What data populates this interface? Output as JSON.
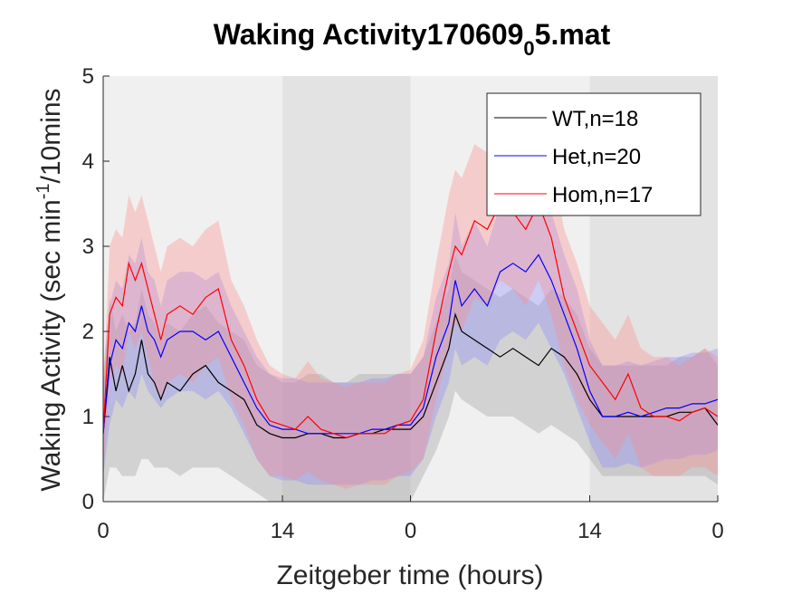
{
  "chart_data": {
    "type": "line",
    "title_main": "Waking Activity170609",
    "title_sub": "0",
    "title_tail": "5.mat",
    "xlabel": "Zeitgeber time (hours)",
    "ylabel_main": "Waking Activity (sec min",
    "ylabel_sup": "-1",
    "ylabel_tail": "/10mins",
    "ylim": [
      0,
      5
    ],
    "y_ticks": [
      0,
      1,
      2,
      3,
      4,
      5
    ],
    "xlim": [
      0,
      48
    ],
    "x_ticks": [
      {
        "hour": 0,
        "label": "0"
      },
      {
        "hour": 14,
        "label": "14"
      },
      {
        "hour": 24,
        "label": "0"
      },
      {
        "hour": 38,
        "label": "14"
      },
      {
        "hour": 48,
        "label": "0"
      }
    ],
    "shading": [
      {
        "start": 0,
        "end": 14,
        "phase": "light"
      },
      {
        "start": 14,
        "end": 24,
        "phase": "dark"
      },
      {
        "start": 24,
        "end": 38,
        "phase": "light"
      },
      {
        "start": 38,
        "end": 48,
        "phase": "dark"
      }
    ],
    "shading_colors": {
      "light": "#f0f0f0",
      "dark": "#e3e3e3"
    },
    "legend_position": "top-right",
    "series": [
      {
        "name": "WT,n=18",
        "color": "#000000",
        "band_color": "#9a9a9a",
        "points": [
          [
            0,
            0.8
          ],
          [
            0.5,
            1.7
          ],
          [
            1,
            1.3
          ],
          [
            1.5,
            1.6
          ],
          [
            2,
            1.3
          ],
          [
            2.5,
            1.5
          ],
          [
            3,
            1.9
          ],
          [
            3.5,
            1.5
          ],
          [
            4,
            1.4
          ],
          [
            4.5,
            1.2
          ],
          [
            5,
            1.4
          ],
          [
            6,
            1.3
          ],
          [
            7,
            1.5
          ],
          [
            8,
            1.6
          ],
          [
            9,
            1.4
          ],
          [
            10,
            1.3
          ],
          [
            11,
            1.2
          ],
          [
            12,
            0.9
          ],
          [
            13,
            0.8
          ],
          [
            14,
            0.75
          ],
          [
            15,
            0.75
          ],
          [
            16,
            0.8
          ],
          [
            17,
            0.8
          ],
          [
            18,
            0.75
          ],
          [
            19,
            0.75
          ],
          [
            20,
            0.8
          ],
          [
            21,
            0.8
          ],
          [
            22,
            0.85
          ],
          [
            23,
            0.85
          ],
          [
            24,
            0.85
          ],
          [
            25,
            1.0
          ],
          [
            26,
            1.4
          ],
          [
            27,
            1.8
          ],
          [
            27.5,
            2.2
          ],
          [
            28,
            2.0
          ],
          [
            29,
            1.9
          ],
          [
            30,
            1.8
          ],
          [
            31,
            1.7
          ],
          [
            32,
            1.8
          ],
          [
            33,
            1.7
          ],
          [
            34,
            1.6
          ],
          [
            35,
            1.8
          ],
          [
            36,
            1.7
          ],
          [
            37,
            1.5
          ],
          [
            38,
            1.2
          ],
          [
            39,
            1.0
          ],
          [
            40,
            1.0
          ],
          [
            41,
            1.0
          ],
          [
            42,
            1.0
          ],
          [
            43,
            1.0
          ],
          [
            44,
            1.0
          ],
          [
            45,
            1.05
          ],
          [
            46,
            1.05
          ],
          [
            47,
            1.1
          ],
          [
            48,
            0.9
          ]
        ],
        "band_lower": [
          0.0,
          0.4,
          0.4,
          0.3,
          0.3,
          0.3,
          0.5,
          0.5,
          0.4,
          0.4,
          0.4,
          0.3,
          0.4,
          0.4,
          0.4,
          0.3,
          0.2,
          0.1,
          0.0,
          0.0,
          0.0,
          0.0,
          0.0,
          0.0,
          0.0,
          0.0,
          0.0,
          0.0,
          0.0,
          0.0,
          0.3,
          0.6,
          1.0,
          1.3,
          1.2,
          1.1,
          1.0,
          1.0,
          1.0,
          0.9,
          0.8,
          0.9,
          0.8,
          0.7,
          0.5,
          0.3,
          0.3,
          0.3,
          0.3,
          0.3,
          0.3,
          0.3,
          0.3,
          0.3,
          0.2
        ],
        "band_upper": [
          1.5,
          2.4,
          2.0,
          2.2,
          2.0,
          2.1,
          2.5,
          2.2,
          2.1,
          1.9,
          2.1,
          2.0,
          2.2,
          2.3,
          2.1,
          2.0,
          1.9,
          1.6,
          1.5,
          1.4,
          1.4,
          1.5,
          1.5,
          1.4,
          1.4,
          1.5,
          1.5,
          1.5,
          1.5,
          1.5,
          1.7,
          2.1,
          2.5,
          2.9,
          2.7,
          2.6,
          2.5,
          2.4,
          2.5,
          2.4,
          2.3,
          2.5,
          2.4,
          2.2,
          1.8,
          1.6,
          1.6,
          1.6,
          1.6,
          1.6,
          1.6,
          1.7,
          1.7,
          1.8,
          1.6
        ]
      },
      {
        "name": "Het,n=20",
        "color": "#0000ff",
        "band_color": "#8a8aff",
        "points": [
          [
            0,
            0.8
          ],
          [
            0.5,
            1.6
          ],
          [
            1,
            1.9
          ],
          [
            1.5,
            1.8
          ],
          [
            2,
            2.1
          ],
          [
            2.5,
            2.0
          ],
          [
            3,
            2.3
          ],
          [
            3.5,
            2.0
          ],
          [
            4,
            1.9
          ],
          [
            4.5,
            1.7
          ],
          [
            5,
            1.9
          ],
          [
            6,
            2.0
          ],
          [
            7,
            2.0
          ],
          [
            8,
            1.9
          ],
          [
            9,
            2.0
          ],
          [
            10,
            1.7
          ],
          [
            11,
            1.4
          ],
          [
            12,
            1.1
          ],
          [
            13,
            0.9
          ],
          [
            14,
            0.85
          ],
          [
            15,
            0.85
          ],
          [
            16,
            0.8
          ],
          [
            17,
            0.8
          ],
          [
            18,
            0.8
          ],
          [
            19,
            0.8
          ],
          [
            20,
            0.8
          ],
          [
            21,
            0.85
          ],
          [
            22,
            0.85
          ],
          [
            23,
            0.9
          ],
          [
            24,
            0.9
          ],
          [
            25,
            1.1
          ],
          [
            26,
            1.7
          ],
          [
            27,
            2.1
          ],
          [
            27.5,
            2.6
          ],
          [
            28,
            2.3
          ],
          [
            29,
            2.5
          ],
          [
            30,
            2.3
          ],
          [
            31,
            2.7
          ],
          [
            32,
            2.8
          ],
          [
            33,
            2.7
          ],
          [
            34,
            2.9
          ],
          [
            35,
            2.6
          ],
          [
            36,
            2.2
          ],
          [
            37,
            1.8
          ],
          [
            38,
            1.3
          ],
          [
            39,
            1.0
          ],
          [
            40,
            1.0
          ],
          [
            41,
            1.05
          ],
          [
            42,
            1.0
          ],
          [
            43,
            1.05
          ],
          [
            44,
            1.1
          ],
          [
            45,
            1.1
          ],
          [
            46,
            1.15
          ],
          [
            47,
            1.15
          ],
          [
            48,
            1.2
          ]
        ],
        "band_lower": [
          0.3,
          0.9,
          1.2,
          1.1,
          1.3,
          1.2,
          1.5,
          1.3,
          1.2,
          1.1,
          1.2,
          1.3,
          1.3,
          1.2,
          1.3,
          1.1,
          0.8,
          0.5,
          0.3,
          0.25,
          0.25,
          0.2,
          0.2,
          0.2,
          0.2,
          0.2,
          0.25,
          0.25,
          0.3,
          0.3,
          0.5,
          1.0,
          1.4,
          1.8,
          1.6,
          1.7,
          1.6,
          1.9,
          2.0,
          1.9,
          2.1,
          1.8,
          1.5,
          1.1,
          0.7,
          0.4,
          0.4,
          0.45,
          0.4,
          0.45,
          0.5,
          0.5,
          0.55,
          0.55,
          0.6
        ],
        "band_upper": [
          1.3,
          2.3,
          2.6,
          2.5,
          2.9,
          2.8,
          3.1,
          2.7,
          2.6,
          2.3,
          2.6,
          2.7,
          2.7,
          2.6,
          2.7,
          2.3,
          2.0,
          1.7,
          1.5,
          1.45,
          1.45,
          1.4,
          1.4,
          1.4,
          1.4,
          1.4,
          1.45,
          1.45,
          1.5,
          1.5,
          1.7,
          2.4,
          2.8,
          3.4,
          3.0,
          3.3,
          3.0,
          3.5,
          3.6,
          3.5,
          3.7,
          3.4,
          2.9,
          2.5,
          1.9,
          1.6,
          1.6,
          1.65,
          1.6,
          1.65,
          1.7,
          1.7,
          1.75,
          1.75,
          1.8
        ]
      },
      {
        "name": "Hom,n=17",
        "color": "#ff0000",
        "band_color": "#ff8a8a",
        "points": [
          [
            0,
            0.8
          ],
          [
            0.5,
            2.2
          ],
          [
            1,
            2.4
          ],
          [
            1.5,
            2.3
          ],
          [
            2,
            2.8
          ],
          [
            2.5,
            2.6
          ],
          [
            3,
            2.8
          ],
          [
            3.5,
            2.5
          ],
          [
            4,
            2.2
          ],
          [
            4.5,
            1.9
          ],
          [
            5,
            2.2
          ],
          [
            6,
            2.3
          ],
          [
            7,
            2.2
          ],
          [
            8,
            2.4
          ],
          [
            9,
            2.5
          ],
          [
            10,
            1.9
          ],
          [
            11,
            1.6
          ],
          [
            12,
            1.2
          ],
          [
            13,
            0.95
          ],
          [
            14,
            0.9
          ],
          [
            15,
            0.85
          ],
          [
            16,
            1.0
          ],
          [
            17,
            0.85
          ],
          [
            18,
            0.8
          ],
          [
            19,
            0.75
          ],
          [
            20,
            0.8
          ],
          [
            21,
            0.8
          ],
          [
            22,
            0.8
          ],
          [
            23,
            0.9
          ],
          [
            24,
            0.95
          ],
          [
            25,
            1.2
          ],
          [
            26,
            2.0
          ],
          [
            27,
            2.7
          ],
          [
            27.5,
            3.0
          ],
          [
            28,
            2.9
          ],
          [
            29,
            3.3
          ],
          [
            30,
            3.2
          ],
          [
            31,
            3.5
          ],
          [
            32,
            3.4
          ],
          [
            33,
            3.2
          ],
          [
            34,
            3.5
          ],
          [
            35,
            3.1
          ],
          [
            36,
            2.4
          ],
          [
            37,
            2.0
          ],
          [
            38,
            1.6
          ],
          [
            39,
            1.4
          ],
          [
            40,
            1.2
          ],
          [
            41,
            1.5
          ],
          [
            42,
            1.1
          ],
          [
            43,
            1.0
          ],
          [
            44,
            1.0
          ],
          [
            45,
            0.95
          ],
          [
            46,
            1.05
          ],
          [
            47,
            1.1
          ],
          [
            48,
            1.0
          ]
        ],
        "band_lower": [
          0.3,
          1.4,
          1.6,
          1.5,
          2.0,
          1.8,
          2.0,
          1.7,
          1.4,
          1.2,
          1.4,
          1.5,
          1.4,
          1.6,
          1.7,
          1.2,
          0.9,
          0.5,
          0.3,
          0.3,
          0.25,
          0.35,
          0.25,
          0.2,
          0.15,
          0.2,
          0.2,
          0.2,
          0.3,
          0.35,
          0.5,
          1.2,
          1.8,
          2.1,
          2.0,
          2.4,
          2.3,
          2.6,
          2.5,
          2.3,
          2.6,
          2.2,
          1.6,
          1.2,
          0.9,
          0.7,
          0.5,
          0.8,
          0.4,
          0.3,
          0.3,
          0.3,
          0.4,
          0.4,
          0.3
        ],
        "band_upper": [
          1.3,
          3.0,
          3.2,
          3.1,
          3.6,
          3.4,
          3.6,
          3.3,
          3.0,
          2.7,
          3.0,
          3.1,
          3.0,
          3.2,
          3.3,
          2.6,
          2.3,
          1.9,
          1.6,
          1.5,
          1.45,
          1.65,
          1.45,
          1.4,
          1.35,
          1.4,
          1.4,
          1.4,
          1.5,
          1.55,
          1.9,
          2.8,
          3.6,
          3.9,
          3.8,
          4.2,
          4.1,
          4.4,
          4.3,
          4.1,
          4.4,
          4.0,
          3.2,
          2.8,
          2.3,
          2.1,
          1.9,
          2.2,
          1.8,
          1.7,
          1.7,
          1.6,
          1.7,
          1.8,
          1.7
        ]
      }
    ]
  }
}
